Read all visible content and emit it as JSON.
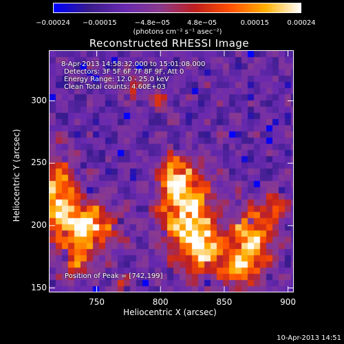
{
  "colorbar": {
    "ticks": [
      {
        "label": "−0.00024",
        "value": -0.00024
      },
      {
        "label": "−0.00015",
        "value": -0.00015
      },
      {
        "label": "−4.8e−05",
        "value": -4.8e-05
      },
      {
        "label": "4.8e−05",
        "value": 4.8e-05
      },
      {
        "label": "0.00015",
        "value": 0.00015
      },
      {
        "label": "0.00024",
        "value": 0.00024
      }
    ],
    "range": [
      -0.00024,
      0.00024
    ],
    "unit_label": "(photons cm⁻² s⁻¹ asec⁻²)"
  },
  "chart_data": {
    "type": "heatmap",
    "title": "Reconstructed RHESSI Image",
    "xlabel": "Heliocentric X (arcsec)",
    "ylabel": "Heliocentric Y (arcsec)",
    "xlim": [
      713,
      904
    ],
    "ylim": [
      147,
      340
    ],
    "x_ticks": [
      750,
      800,
      850,
      900
    ],
    "y_ticks": [
      150,
      200,
      250,
      300
    ],
    "peak": [
      742,
      199
    ],
    "colormap": [
      "#0000ff",
      "#3a1c8c",
      "#6a2ab0",
      "#8a3a90",
      "#c02020",
      "#ff5000",
      "#ffb000",
      "#ffffff"
    ]
  },
  "annotations": {
    "line1": "8-Apr-2013 14:58:32.000 to 15:01:08.000",
    "line2": "Detectors: 3F 5F 6F 7F 8F 9F, Att 0",
    "line3": "Energy Range: 12.0 - 25.0 keV",
    "line4": "Clean     Total counts: 4.60E+03",
    "peak_text": "Position of Peak = [742,199]"
  },
  "footer": "10-Apr-2013 14:51"
}
